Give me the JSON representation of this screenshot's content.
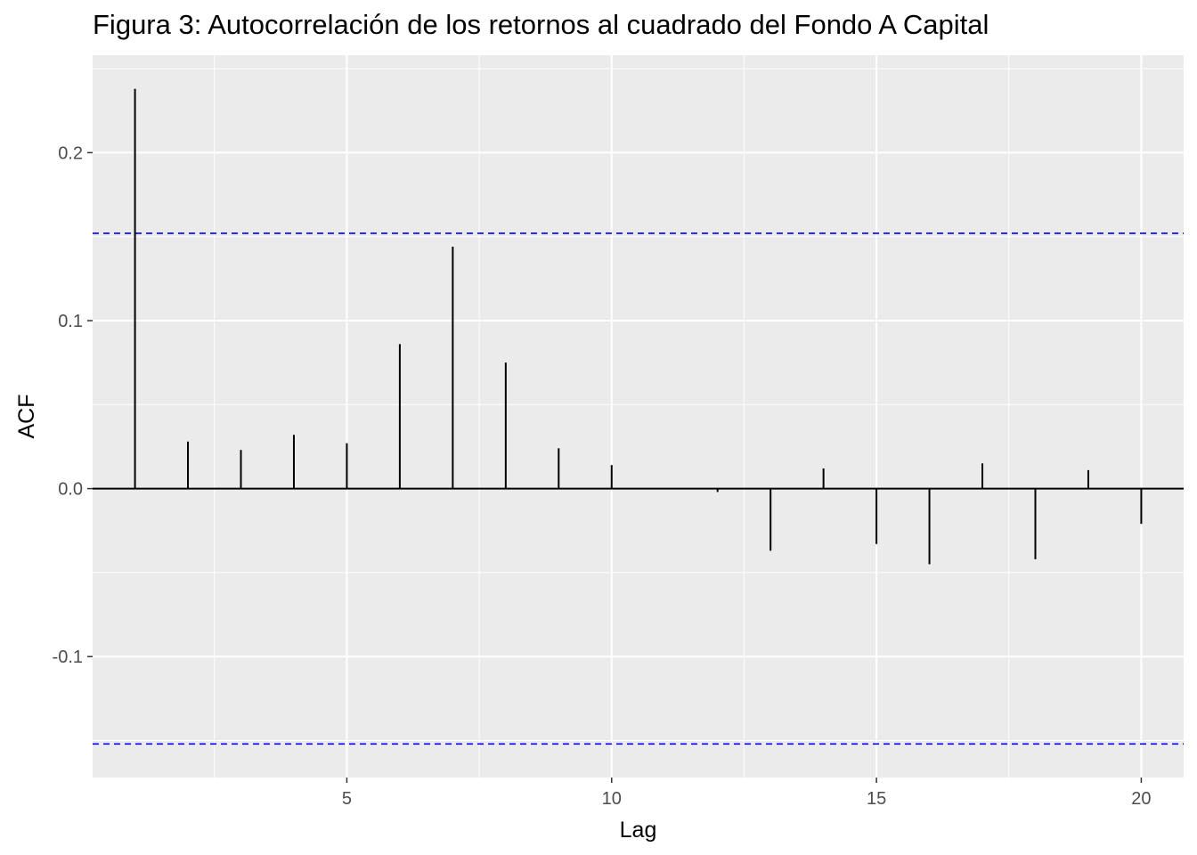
{
  "chart_data": {
    "type": "bar",
    "title": "Figura 3: Autocorrelación de los retornos al cuadrado del Fondo A Capital",
    "xlabel": "Lag",
    "ylabel": "ACF",
    "xlim": [
      0.2,
      20.8
    ],
    "ylim": [
      -0.172,
      0.258
    ],
    "x_ticks": [
      5,
      10,
      15,
      20
    ],
    "x_tick_labels": [
      "5",
      "10",
      "15",
      "20"
    ],
    "y_ticks": [
      -0.1,
      0.0,
      0.1,
      0.2
    ],
    "y_tick_labels": [
      "-0.1",
      "0.0",
      "0.1",
      "0.2"
    ],
    "grid": true,
    "lags": [
      1,
      2,
      3,
      4,
      5,
      6,
      7,
      8,
      9,
      10,
      11,
      12,
      13,
      14,
      15,
      16,
      17,
      18,
      19,
      20
    ],
    "acf": [
      0.238,
      0.028,
      0.023,
      0.032,
      0.027,
      0.086,
      0.144,
      0.075,
      0.024,
      0.014,
      0.0,
      -0.002,
      -0.037,
      0.012,
      -0.033,
      -0.045,
      0.015,
      -0.042,
      0.011,
      -0.021
    ],
    "confidence_bound": 0.152,
    "colors": {
      "panel": "#ebebeb",
      "grid": "#ffffff",
      "bars": "#000000",
      "bounds": "#0000ff"
    }
  }
}
